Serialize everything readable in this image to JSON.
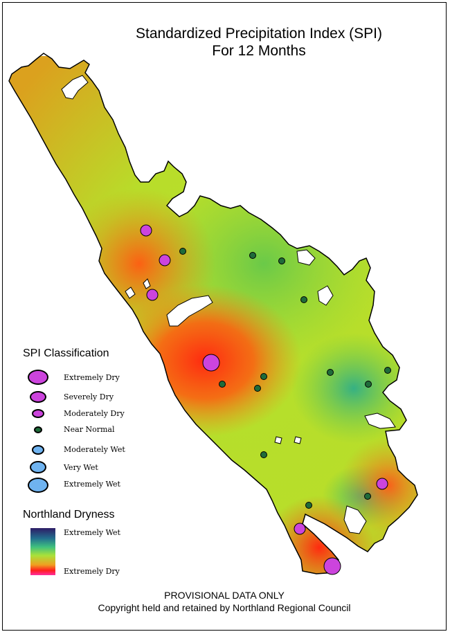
{
  "title": {
    "line1": "Standardized Precipitation Index (SPI)",
    "line2": "For 12 Months"
  },
  "legend": {
    "spi_heading": "SPI Classification",
    "classes": [
      {
        "label": "Extremely Dry",
        "color": "#cc44dd",
        "size": "large"
      },
      {
        "label": "Severely Dry",
        "color": "#cc44dd",
        "size": "medium"
      },
      {
        "label": "Moderately Dry",
        "color": "#cc44dd",
        "size": "small"
      },
      {
        "label": "Near Normal",
        "color": "#1f6b3a",
        "size": "tiny"
      },
      {
        "label": "Moderately Wet",
        "color": "#6fb3f0",
        "size": "small"
      },
      {
        "label": "Very Wet",
        "color": "#6fb3f0",
        "size": "medium"
      },
      {
        "label": "Extremely Wet",
        "color": "#6fb3f0",
        "size": "large"
      }
    ],
    "dryness_heading": "Northland Dryness",
    "ramp_top_label": "Extremely Wet",
    "ramp_bottom_label": "Extremely Dry"
  },
  "footer": {
    "line1": "PROVISIONAL DATA ONLY",
    "line2": "Copyright held and retained by Northland Regional Council"
  },
  "colors": {
    "dry_marker": "#cc44dd",
    "normal_marker": "#1f6b3a",
    "wet_marker": "#6fb3f0"
  }
}
